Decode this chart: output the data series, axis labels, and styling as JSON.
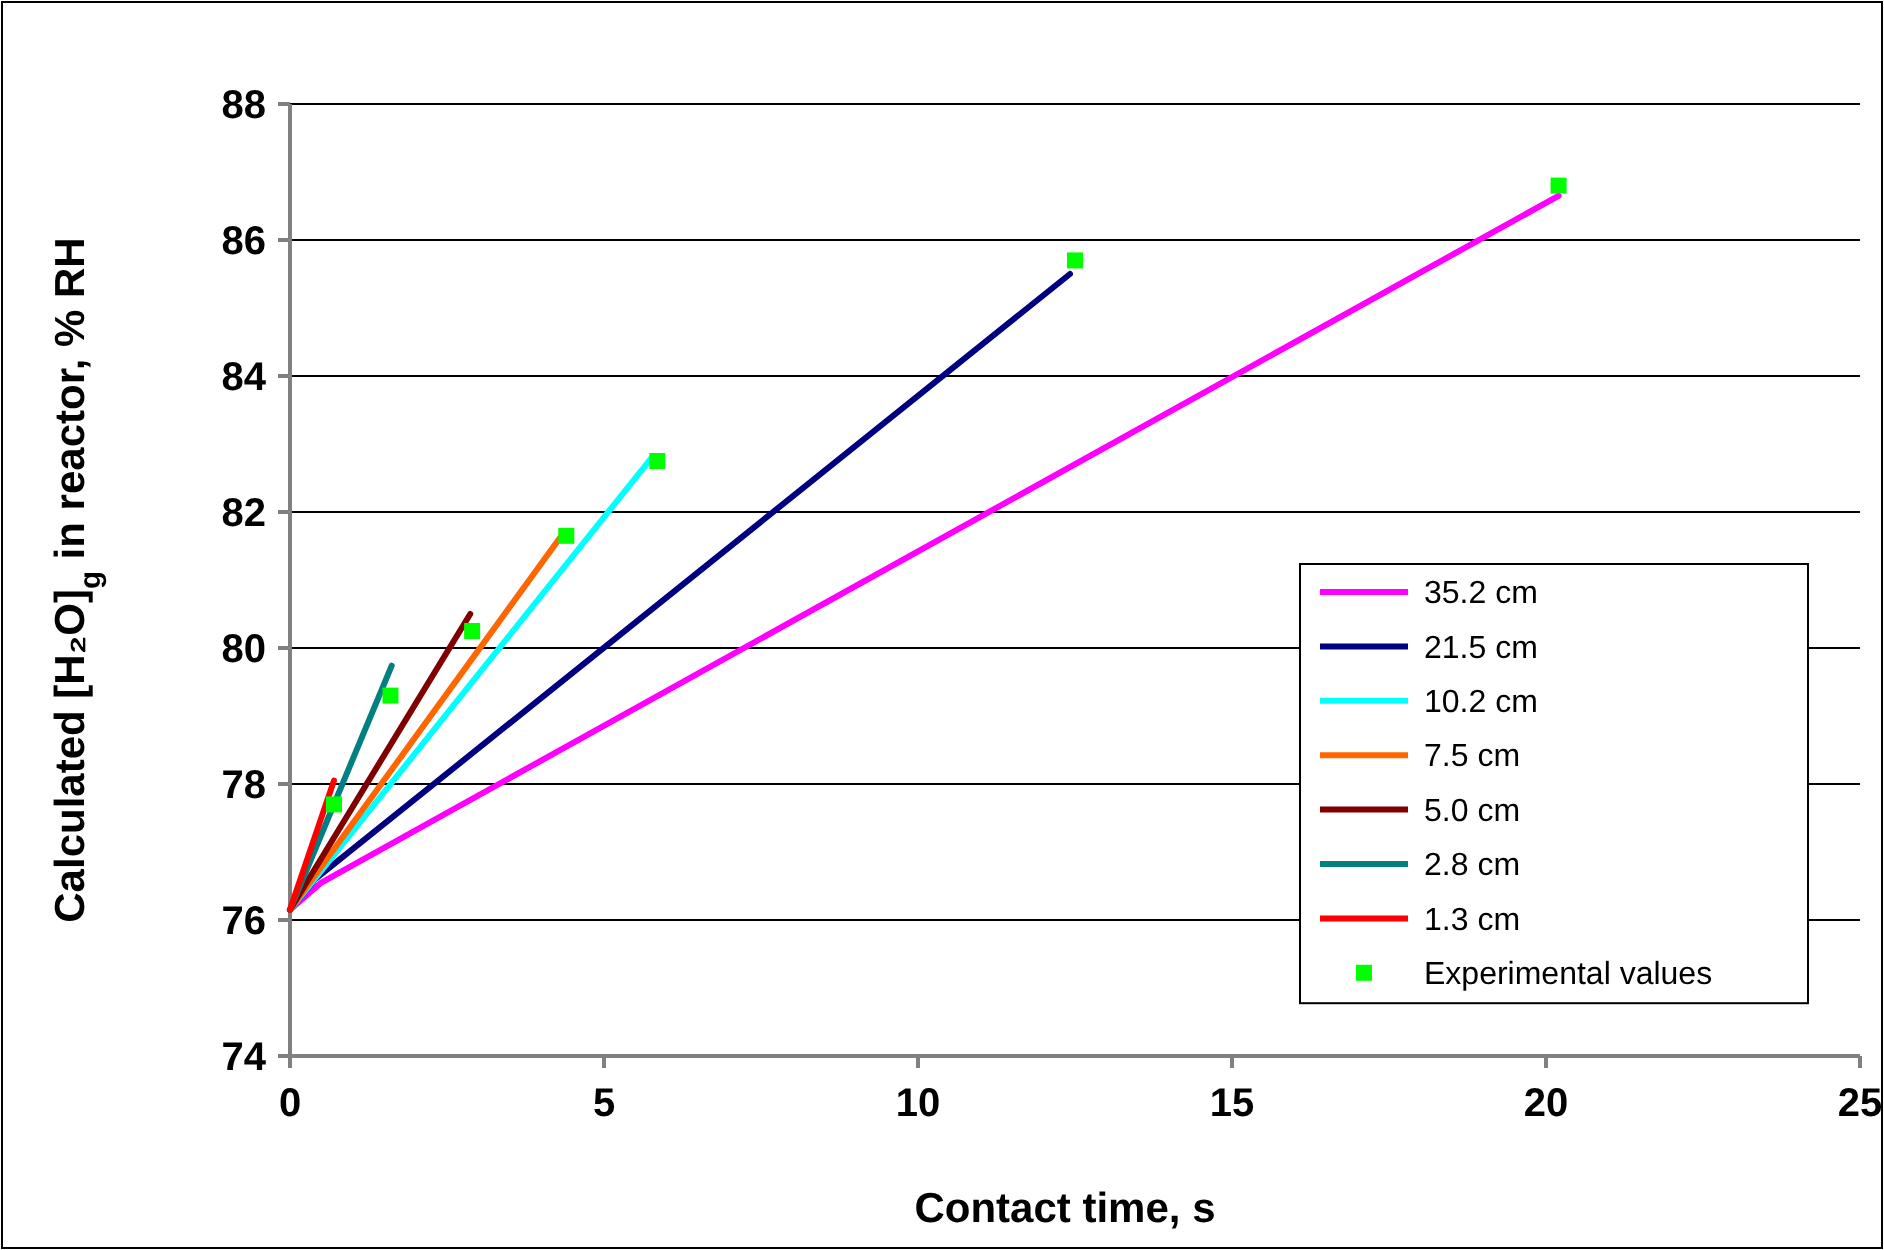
{
  "chart_data": {
    "type": "line",
    "xlabel": "Contact time, s",
    "ylabel": "Calculated [H₂O]$_{g}$ in reactor, % RH",
    "xlim": [
      0,
      25
    ],
    "xticks": [
      0,
      5,
      10,
      15,
      20,
      25
    ],
    "ylim": [
      74,
      88
    ],
    "yticks": [
      74,
      76,
      78,
      80,
      82,
      84,
      86,
      88
    ],
    "grid": "y",
    "legend": "right",
    "series": [
      {
        "name": "35.2 cm",
        "color": "#ff00ff",
        "x": [
          0,
          0.5,
          20.2
        ],
        "values": [
          76.15,
          76.55,
          86.65
        ]
      },
      {
        "name": "21.5 cm",
        "color": "#000080",
        "x": [
          0,
          0.4,
          12.42
        ],
        "values": [
          76.15,
          76.6,
          85.5
        ]
      },
      {
        "name": "10.2 cm",
        "color": "#00ffff",
        "x": [
          0,
          5.76
        ],
        "values": [
          76.15,
          82.8
        ]
      },
      {
        "name": "7.5 cm",
        "color": "#ff6600",
        "x": [
          0,
          4.36
        ],
        "values": [
          76.15,
          81.7
        ]
      },
      {
        "name": "5.0 cm",
        "color": "#800000",
        "x": [
          0,
          2.87
        ],
        "values": [
          76.15,
          80.5
        ]
      },
      {
        "name": "2.8 cm",
        "color": "#008080",
        "x": [
          0,
          1.62
        ],
        "values": [
          76.15,
          79.74
        ]
      },
      {
        "name": "1.3 cm",
        "color": "#ff0000",
        "x": [
          0,
          0.7
        ],
        "values": [
          76.15,
          78.05
        ]
      },
      {
        "name": "Experimental values",
        "type": "scatter",
        "marker": "square",
        "color": "#00ff00",
        "x": [
          0.7,
          1.6,
          2.9,
          4.4,
          5.85,
          12.5,
          20.2
        ],
        "values": [
          77.7,
          79.3,
          80.25,
          81.65,
          82.75,
          85.7,
          86.8
        ]
      }
    ]
  }
}
